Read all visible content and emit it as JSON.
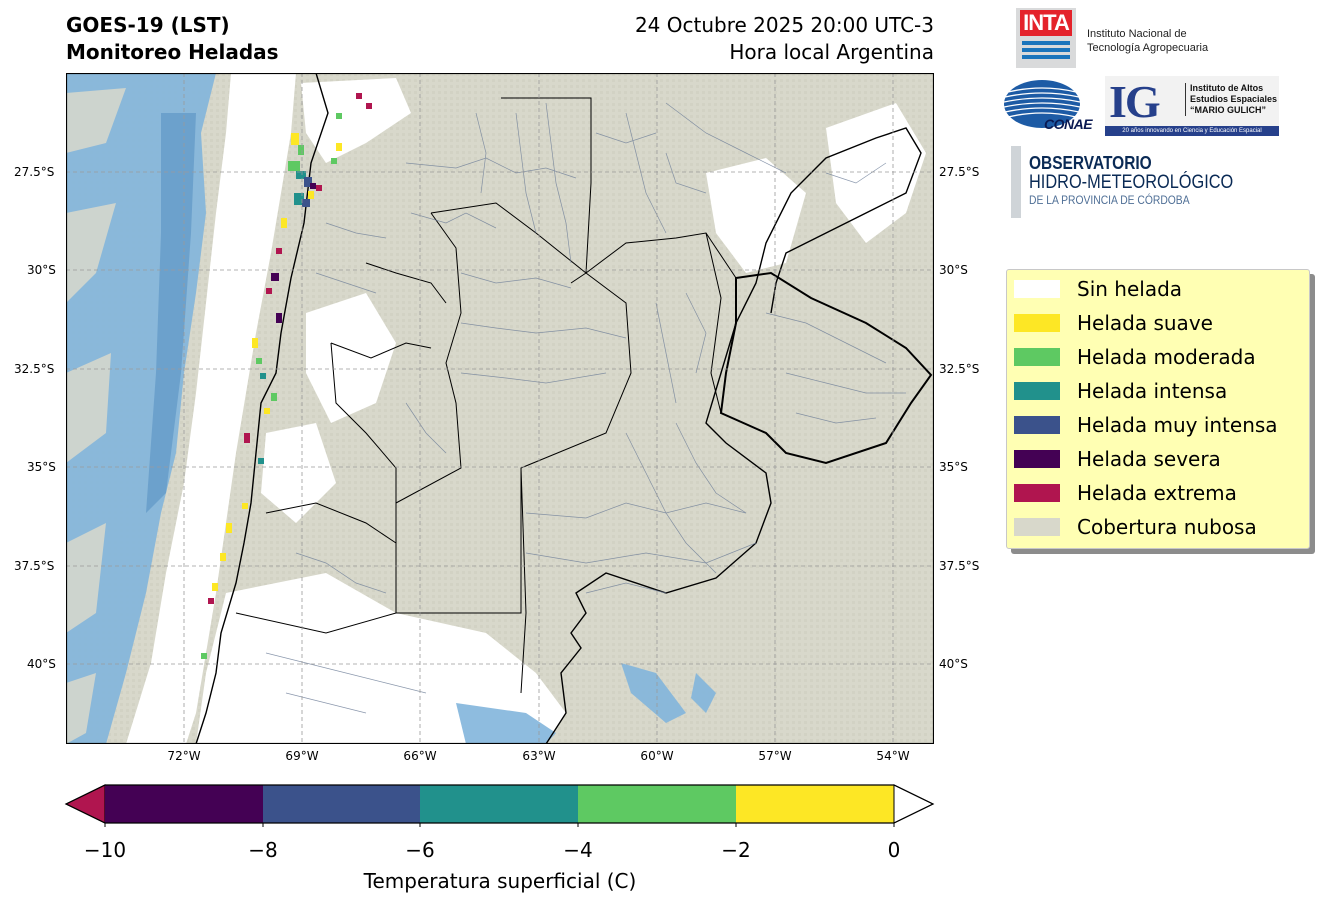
{
  "header": {
    "title_line1": "GOES-19 (LST)",
    "title_line2": "Monitoreo Heladas",
    "date_line1": "24 Octubre 2025 20:00 UTC-3",
    "date_line2": "Hora local Argentina"
  },
  "map": {
    "lat_ticks": [
      "27.5°S",
      "30°S",
      "32.5°S",
      "35°S",
      "37.5°S",
      "40°S"
    ],
    "lon_ticks": [
      "72°W",
      "69°W",
      "66°W",
      "63°W",
      "60°W",
      "57°W",
      "54°W"
    ],
    "colors": {
      "cloud": "#d8d8cb",
      "sea": "#82b5db",
      "border": "#6f7f99",
      "gridline": "#9a9a9a"
    }
  },
  "logos": {
    "inta_acronym": "INTA",
    "inta_name_line1": "Instituto Nacional de",
    "inta_name_line2": "Tecnología Agropecuaria",
    "conae": "CONAE",
    "ig_letters": "IG",
    "ig_name_line1": "Instituto de Altos",
    "ig_name_line2": "Estudios Espaciales",
    "ig_name_line3": "“MARIO GULICH”",
    "ig_tagline": "20 años innovando en Ciencia y Educación Espacial",
    "obs_line1": "OBSERVATORIO",
    "obs_line2": "HIDRO-METEOROLÓGICO",
    "obs_line3": "DE LA PROVINCIA DE CÓRDOBA"
  },
  "legend": {
    "items": [
      {
        "label": "Sin helada",
        "color": "#ffffff"
      },
      {
        "label": "Helada suave",
        "color": "#fde725"
      },
      {
        "label": "Helada moderada",
        "color": "#5ec962"
      },
      {
        "label": "Helada intensa",
        "color": "#21918c"
      },
      {
        "label": "Helada muy intensa",
        "color": "#3b528b"
      },
      {
        "label": "Helada severa",
        "color": "#440154"
      },
      {
        "label": "Helada extrema",
        "color": "#b0154f"
      },
      {
        "label": "Cobertura nubosa",
        "color": "#d8d8cb"
      }
    ]
  },
  "colorbar": {
    "ticks": [
      "−10",
      "−8",
      "−6",
      "−4",
      "−2",
      "0"
    ],
    "label": "Temperatura superficial (C)",
    "segments": [
      "#440154",
      "#3b528b",
      "#21918c",
      "#5ec962",
      "#fde725"
    ],
    "under_color": "#b0154f",
    "over_color": "#ffffff"
  }
}
